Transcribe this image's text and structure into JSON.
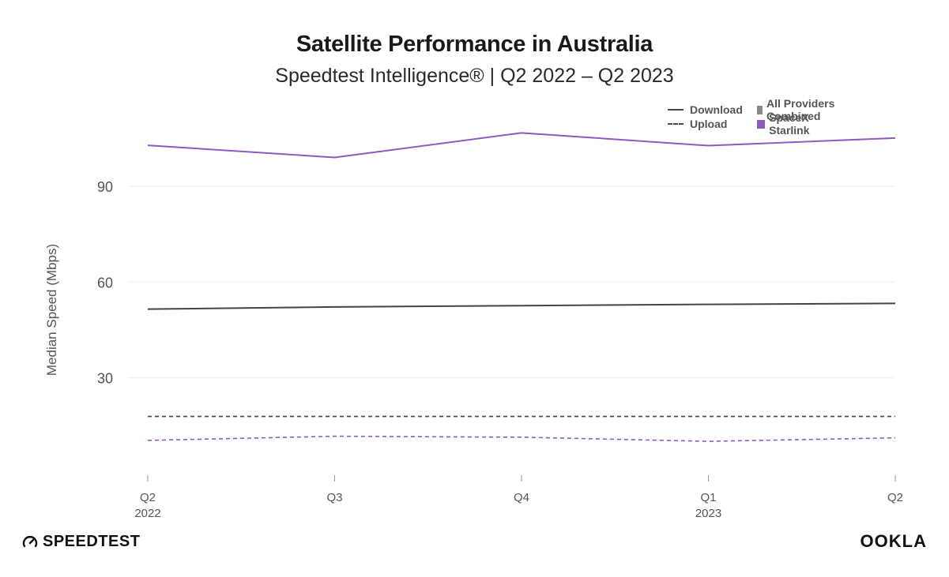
{
  "title": "Satellite Performance in Australia",
  "subtitle": "Speedtest Intelligence® | Q2 2022 – Q2 2023",
  "legend": {
    "download": "Download",
    "upload": "Upload",
    "all_providers": "All Providers Combined",
    "starlink": "SpaceX Starlink"
  },
  "colors": {
    "all_providers": "#444444",
    "starlink": "#8c5bbd",
    "all_providers_swatch": "#8a8a8a",
    "grid": "#eeeeee",
    "axis_text": "#555555"
  },
  "footer": {
    "left_logo": "SPEEDTEST",
    "right_logo": "OOKLA"
  },
  "chart_data": {
    "type": "line",
    "title": "Satellite Performance in Australia",
    "subtitle": "Speedtest Intelligence® | Q2 2022 – Q2 2023",
    "ylabel": "Median Speed (Mbps)",
    "xlabel": "",
    "ylim": [
      0,
      110
    ],
    "yticks": [
      30,
      60,
      90
    ],
    "grid": true,
    "legend_position": "top-right",
    "categories": [
      {
        "quarter": "Q2",
        "year": "2022"
      },
      {
        "quarter": "Q3",
        "year": ""
      },
      {
        "quarter": "Q4",
        "year": ""
      },
      {
        "quarter": "Q1",
        "year": "2023"
      },
      {
        "quarter": "Q2",
        "year": ""
      }
    ],
    "series": [
      {
        "name": "SpaceX Starlink",
        "metric": "Download",
        "style": "solid",
        "color": "#8c5bbd",
        "values": [
          102.8,
          99.0,
          106.7,
          102.7,
          105.1
        ]
      },
      {
        "name": "All Providers Combined",
        "metric": "Download",
        "style": "solid",
        "color": "#444444",
        "values": [
          51.5,
          52.2,
          52.6,
          53.0,
          53.3
        ]
      },
      {
        "name": "All Providers Combined",
        "metric": "Upload",
        "style": "dashed",
        "color": "#444444",
        "values": [
          17.9,
          17.9,
          17.9,
          17.9,
          17.9
        ]
      },
      {
        "name": "SpaceX Starlink",
        "metric": "Upload",
        "style": "dashed",
        "color": "#8c5bbd",
        "values": [
          10.4,
          11.7,
          11.4,
          10.1,
          11.2
        ]
      }
    ]
  }
}
